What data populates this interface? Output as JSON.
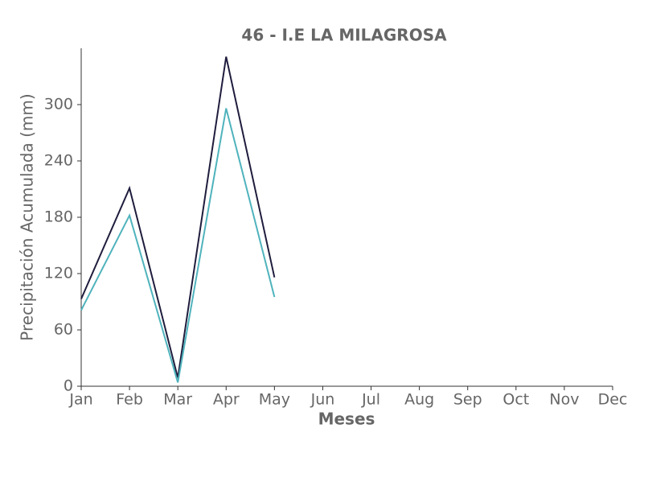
{
  "chart_data": {
    "type": "line",
    "title": "46 - I.E LA MILAGROSA",
    "x_label": "Meses",
    "y_label": "Precipitación Acumulada (mm)",
    "categories": [
      "Jan",
      "Feb",
      "Mar",
      "Apr",
      "May",
      "Jun",
      "Jul",
      "Aug",
      "Sep",
      "Oct",
      "Nov",
      "Dec"
    ],
    "series": [
      {
        "color": "#1f1d3d",
        "values": [
          93,
          211,
          9,
          351,
          116,
          null,
          null,
          null,
          null,
          null,
          null,
          null
        ]
      },
      {
        "color": "#4fb3bc",
        "values": [
          81,
          182,
          4,
          296,
          95,
          null,
          null,
          null,
          null,
          null,
          null,
          null
        ]
      }
    ],
    "ylim": [
      0,
      360
    ],
    "yticks": [
      0,
      60,
      120,
      180,
      240,
      300
    ],
    "grid": false
  }
}
